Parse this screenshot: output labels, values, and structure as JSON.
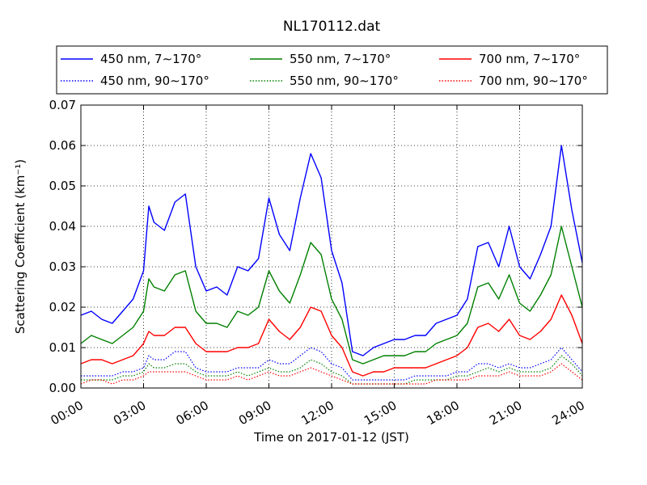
{
  "chart_data": {
    "type": "line",
    "title": "NL170112.dat",
    "xlabel": "Time on 2017-01-12 (JST)",
    "ylabel": "Scattering Coefficient (km⁻¹)",
    "xlim": [
      "00:00",
      "24:00"
    ],
    "ylim": [
      0,
      0.07
    ],
    "grid": true,
    "legend_position": "top",
    "x_ticks": [
      "00:00",
      "03:00",
      "06:00",
      "09:00",
      "12:00",
      "15:00",
      "18:00",
      "21:00",
      "24:00"
    ],
    "y_ticks": [
      "0.00",
      "0.01",
      "0.02",
      "0.03",
      "0.04",
      "0.05",
      "0.06",
      "0.07"
    ],
    "x": [
      "00:00",
      "00:30",
      "01:00",
      "01:30",
      "02:00",
      "02:30",
      "03:00",
      "03:15",
      "03:30",
      "04:00",
      "04:30",
      "05:00",
      "05:30",
      "06:00",
      "06:30",
      "07:00",
      "07:30",
      "08:00",
      "08:30",
      "09:00",
      "09:30",
      "10:00",
      "10:30",
      "11:00",
      "11:30",
      "12:00",
      "12:30",
      "13:00",
      "13:30",
      "14:00",
      "14:30",
      "15:00",
      "15:30",
      "16:00",
      "16:30",
      "17:00",
      "17:30",
      "18:00",
      "18:30",
      "19:00",
      "19:30",
      "20:00",
      "20:30",
      "21:00",
      "21:30",
      "22:00",
      "22:30",
      "23:00",
      "23:30",
      "24:00"
    ],
    "series": [
      {
        "name": "450 nm, 7∼170°",
        "color": "#0000ff",
        "style": "solid",
        "values": [
          0.018,
          0.019,
          0.017,
          0.016,
          0.019,
          0.022,
          0.029,
          0.045,
          0.041,
          0.039,
          0.046,
          0.048,
          0.03,
          0.024,
          0.025,
          0.023,
          0.03,
          0.029,
          0.032,
          0.047,
          0.038,
          0.034,
          0.047,
          0.058,
          0.052,
          0.034,
          0.026,
          0.009,
          0.008,
          0.01,
          0.011,
          0.012,
          0.012,
          0.013,
          0.013,
          0.016,
          0.017,
          0.018,
          0.022,
          0.035,
          0.036,
          0.03,
          0.04,
          0.03,
          0.027,
          0.033,
          0.04,
          0.06,
          0.044,
          0.031
        ]
      },
      {
        "name": "550 nm, 7∼170°",
        "color": "#008000",
        "style": "solid",
        "values": [
          0.011,
          0.013,
          0.012,
          0.011,
          0.013,
          0.015,
          0.019,
          0.027,
          0.025,
          0.024,
          0.028,
          0.029,
          0.019,
          0.016,
          0.016,
          0.015,
          0.019,
          0.018,
          0.02,
          0.029,
          0.024,
          0.021,
          0.028,
          0.036,
          0.033,
          0.022,
          0.017,
          0.007,
          0.006,
          0.007,
          0.008,
          0.008,
          0.008,
          0.009,
          0.009,
          0.011,
          0.012,
          0.013,
          0.016,
          0.025,
          0.026,
          0.022,
          0.028,
          0.021,
          0.019,
          0.023,
          0.028,
          0.04,
          0.03,
          0.02
        ]
      },
      {
        "name": "700 nm, 7∼170°",
        "color": "#ff0000",
        "style": "solid",
        "values": [
          0.006,
          0.007,
          0.007,
          0.006,
          0.007,
          0.008,
          0.011,
          0.014,
          0.013,
          0.013,
          0.015,
          0.015,
          0.011,
          0.009,
          0.009,
          0.009,
          0.01,
          0.01,
          0.011,
          0.017,
          0.014,
          0.012,
          0.015,
          0.02,
          0.019,
          0.013,
          0.01,
          0.004,
          0.003,
          0.004,
          0.004,
          0.005,
          0.005,
          0.005,
          0.005,
          0.006,
          0.007,
          0.008,
          0.01,
          0.015,
          0.016,
          0.014,
          0.017,
          0.013,
          0.012,
          0.014,
          0.017,
          0.023,
          0.018,
          0.011
        ]
      },
      {
        "name": "450 nm, 90∼170°",
        "color": "#0000ff",
        "style": "dotted",
        "values": [
          0.003,
          0.003,
          0.003,
          0.003,
          0.004,
          0.004,
          0.005,
          0.008,
          0.007,
          0.007,
          0.009,
          0.009,
          0.005,
          0.004,
          0.004,
          0.004,
          0.005,
          0.005,
          0.005,
          0.007,
          0.006,
          0.006,
          0.008,
          0.01,
          0.009,
          0.006,
          0.005,
          0.002,
          0.002,
          0.002,
          0.002,
          0.002,
          0.002,
          0.003,
          0.003,
          0.003,
          0.003,
          0.004,
          0.004,
          0.006,
          0.006,
          0.005,
          0.006,
          0.005,
          0.005,
          0.006,
          0.007,
          0.01,
          0.007,
          0.004
        ]
      },
      {
        "name": "550 nm, 90∼170°",
        "color": "#008000",
        "style": "dotted",
        "values": [
          0.002,
          0.002,
          0.002,
          0.002,
          0.003,
          0.003,
          0.004,
          0.006,
          0.005,
          0.005,
          0.006,
          0.006,
          0.004,
          0.003,
          0.003,
          0.003,
          0.004,
          0.003,
          0.004,
          0.005,
          0.004,
          0.004,
          0.005,
          0.007,
          0.006,
          0.004,
          0.003,
          0.001,
          0.001,
          0.001,
          0.001,
          0.001,
          0.001,
          0.002,
          0.002,
          0.002,
          0.002,
          0.003,
          0.003,
          0.004,
          0.005,
          0.004,
          0.005,
          0.004,
          0.004,
          0.004,
          0.005,
          0.008,
          0.006,
          0.003
        ]
      },
      {
        "name": "700 nm, 90∼170°",
        "color": "#ff0000",
        "style": "dotted",
        "values": [
          0.001,
          0.002,
          0.002,
          0.001,
          0.002,
          0.002,
          0.003,
          0.004,
          0.004,
          0.004,
          0.004,
          0.004,
          0.003,
          0.002,
          0.002,
          0.002,
          0.003,
          0.002,
          0.003,
          0.004,
          0.003,
          0.003,
          0.004,
          0.005,
          0.004,
          0.003,
          0.002,
          0.001,
          0.001,
          0.001,
          0.001,
          0.001,
          0.001,
          0.001,
          0.001,
          0.002,
          0.002,
          0.002,
          0.002,
          0.003,
          0.003,
          0.003,
          0.004,
          0.003,
          0.003,
          0.003,
          0.004,
          0.006,
          0.004,
          0.002
        ]
      }
    ]
  }
}
